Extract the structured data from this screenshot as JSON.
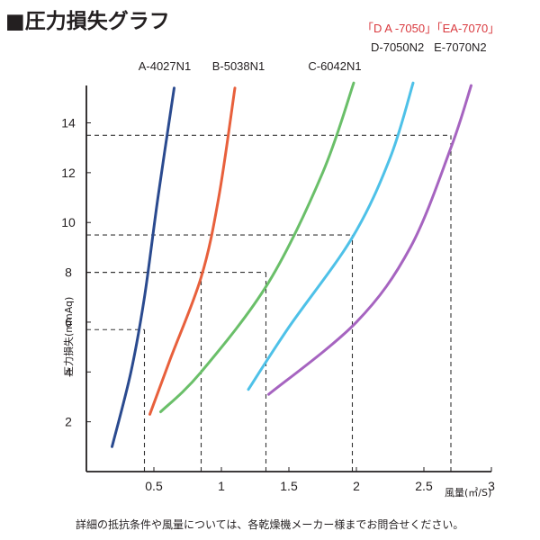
{
  "page": {
    "title": "■圧力損失グラフ",
    "footnote": "詳細の抵抗条件や風量については、各乾燥機メーカー様までお問合せください。"
  },
  "legend": {
    "red_models": "「D A -7050」「EA-7070」",
    "models_line2": "D-7050N2   E-7070N2"
  },
  "chart_data": {
    "type": "line",
    "xlabel": "風量(㎥/S)",
    "ylabel": "圧力損失(mmAq)",
    "xlim": [
      0,
      3
    ],
    "ylim": [
      0,
      15.5
    ],
    "x_ticks": [
      "0.5",
      "1",
      "1.5",
      "2",
      "2.5",
      "3"
    ],
    "x_tick_values": [
      0.5,
      1,
      1.5,
      2,
      2.5,
      3
    ],
    "y_ticks": [
      "2",
      "4",
      "6",
      "8",
      "10",
      "12",
      "14"
    ],
    "y_tick_values": [
      2,
      4,
      6,
      8,
      10,
      12,
      14
    ],
    "grid": false,
    "series": [
      {
        "name": "A-4027N1",
        "color": "#2a4a8f",
        "x": [
          0.19,
          0.33,
          0.43,
          0.53,
          0.65
        ],
        "y": [
          1.0,
          4.0,
          7.0,
          11.0,
          15.4
        ]
      },
      {
        "name": "B-5038N1",
        "color": "#e8603c",
        "x": [
          0.47,
          0.62,
          0.85,
          0.98,
          1.1
        ],
        "y": [
          2.3,
          4.5,
          7.8,
          11.0,
          15.4
        ]
      },
      {
        "name": "C-6042N1",
        "color": "#6abf69",
        "x": [
          0.55,
          0.85,
          1.35,
          1.75,
          1.98
        ],
        "y": [
          2.4,
          4.0,
          7.6,
          12.0,
          15.6
        ]
      },
      {
        "name": "D-7050N2",
        "color": "#4ec1e8",
        "x": [
          1.2,
          1.5,
          1.97,
          2.25,
          2.42
        ],
        "y": [
          3.3,
          5.8,
          9.4,
          12.6,
          15.6
        ]
      },
      {
        "name": "E-7070N2",
        "color": "#a664c0",
        "x": [
          1.35,
          2.0,
          2.4,
          2.7,
          2.85
        ],
        "y": [
          3.1,
          6.0,
          9.0,
          13.0,
          15.5
        ]
      }
    ],
    "reference_lines": [
      {
        "x": 0.43,
        "y": 5.7
      },
      {
        "x": 0.85,
        "y": 8.0
      },
      {
        "x": 1.33,
        "y": 8.0
      },
      {
        "x": 1.97,
        "y": 9.5
      },
      {
        "x": 2.7,
        "y": 13.5
      }
    ]
  }
}
